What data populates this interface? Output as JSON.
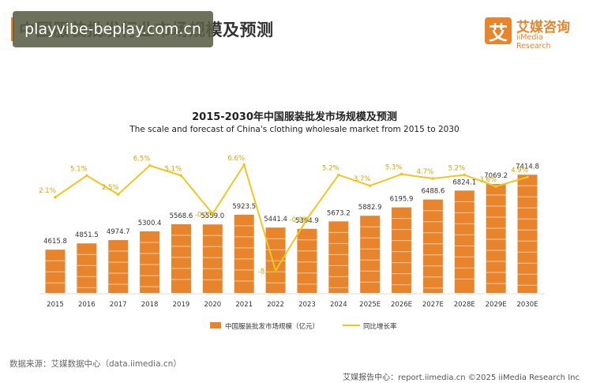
{
  "page": {
    "title": "中国服装批发行业市场规模及预测",
    "watermark": "playvibe-beplay.com.cn",
    "logo": {
      "mark": "艾",
      "cn": "艾媒咨询",
      "en": "iiMedia Research"
    },
    "footer_source": "数据来源：艾媒数据中心（data.iimedia.cn）",
    "footer_right": "艾媒报告中心：report.iimedia.cn ©2025 iiMedia Research Inc"
  },
  "colors": {
    "bar": "#e8842b",
    "line": "#f2c521",
    "accent": "#e8842b"
  },
  "chart_data": {
    "type": "bar",
    "title": "2015-2030年中国服装批发市场规模及预测",
    "subtitle": "The scale and forecast of China's clothing wholesale market from 2015 to 2030",
    "categories": [
      "2015",
      "2016",
      "2017",
      "2018",
      "2019",
      "2020",
      "2021",
      "2022",
      "2023",
      "2024",
      "2025E",
      "2026E",
      "2027E",
      "2028E",
      "2029E",
      "2030E"
    ],
    "series": [
      {
        "name": "中国服装批发市场规模（亿元）",
        "type": "bar",
        "values": [
          4615.8,
          4851.5,
          4974.7,
          5300.4,
          5568.6,
          5559.0,
          5923.5,
          5441.4,
          5394.9,
          5673.2,
          5882.9,
          6195.9,
          6488.6,
          6824.1,
          7069.2,
          7414.8
        ],
        "labels": [
          "4615.8",
          "4851.5",
          "4974.7",
          "5300.4",
          "5568.6",
          "5559.0",
          "5923.5",
          "5441.4",
          "5394.9",
          "5673.2",
          "5882.9",
          "6195.9",
          "6488.6",
          "6824.1",
          "7069.2",
          "7414.8"
        ]
      },
      {
        "name": "同比增长率",
        "type": "line",
        "values": [
          2.1,
          5.1,
          2.5,
          6.5,
          5.1,
          -0.2,
          6.6,
          -8.1,
          -0.9,
          5.2,
          3.7,
          5.3,
          4.7,
          5.2,
          3.6,
          4.9
        ],
        "labels": [
          "2.1%",
          "5.1%",
          "2.5%",
          "6.5%",
          "5.1%",
          "-0.2%",
          "6.6%",
          "-8.1%",
          "-0.9%",
          "5.2%",
          "3.7%",
          "5.3%",
          "4.7%",
          "5.2%",
          "3.6%",
          "4.9%"
        ]
      }
    ],
    "legend_position": "bottom",
    "grid": false
  }
}
